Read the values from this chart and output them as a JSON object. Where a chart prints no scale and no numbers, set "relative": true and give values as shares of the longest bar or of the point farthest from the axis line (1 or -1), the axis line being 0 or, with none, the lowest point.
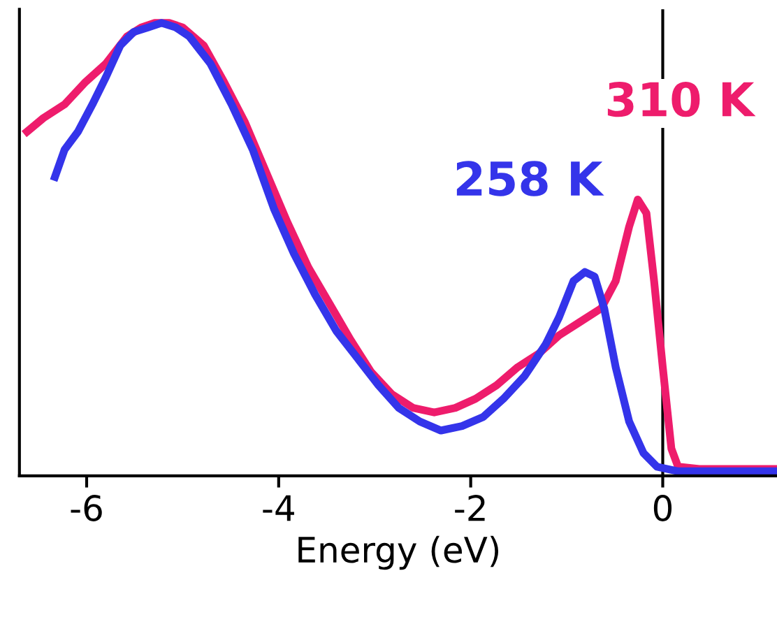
{
  "chart_data": {
    "type": "line",
    "xlabel": "Energy (eV)",
    "relative": true,
    "legend": false,
    "grid": false,
    "xlim": [
      -6.7,
      1.19
    ],
    "xticks": [
      {
        "value": -6,
        "label": "-6"
      },
      {
        "value": -4,
        "label": "-4"
      },
      {
        "value": -2,
        "label": "-2"
      },
      {
        "value": 0,
        "label": "0"
      }
    ],
    "ref_lines": [
      {
        "axis": "x",
        "value": 0,
        "color": "#000000"
      }
    ],
    "series": [
      {
        "name": "310 K",
        "color": "#ee1c6c",
        "x": [
          -6.62,
          -6.45,
          -6.23,
          -6.01,
          -5.8,
          -5.58,
          -5.43,
          -5.29,
          -5.14,
          -5.0,
          -4.78,
          -4.57,
          -4.35,
          -4.13,
          -3.91,
          -3.69,
          -3.47,
          -3.25,
          -3.04,
          -2.82,
          -2.6,
          -2.38,
          -2.16,
          -1.95,
          -1.73,
          -1.51,
          -1.29,
          -1.08,
          -0.86,
          -0.64,
          -0.49,
          -0.35,
          -0.26,
          -0.17,
          -0.09,
          0.0,
          0.09,
          0.16,
          0.38,
          1.19
        ],
        "values": [
          0.76,
          0.79,
          0.82,
          0.87,
          0.91,
          0.97,
          0.99,
          1.0,
          1.0,
          0.99,
          0.95,
          0.87,
          0.78,
          0.67,
          0.56,
          0.46,
          0.38,
          0.3,
          0.23,
          0.18,
          0.15,
          0.14,
          0.15,
          0.17,
          0.2,
          0.24,
          0.27,
          0.31,
          0.34,
          0.37,
          0.43,
          0.55,
          0.61,
          0.58,
          0.43,
          0.24,
          0.06,
          0.02,
          0.015,
          0.015
        ]
      },
      {
        "name": "258 K",
        "color": "#3434ea",
        "x": [
          -6.33,
          -6.23,
          -6.09,
          -5.94,
          -5.8,
          -5.65,
          -5.51,
          -5.36,
          -5.22,
          -5.07,
          -4.93,
          -4.71,
          -4.49,
          -4.27,
          -4.05,
          -3.84,
          -3.62,
          -3.4,
          -3.18,
          -2.96,
          -2.75,
          -2.53,
          -2.31,
          -2.09,
          -1.87,
          -1.66,
          -1.44,
          -1.22,
          -1.08,
          -0.93,
          -0.81,
          -0.71,
          -0.61,
          -0.49,
          -0.35,
          -0.2,
          -0.06,
          0.16,
          1.19
        ],
        "values": [
          0.66,
          0.72,
          0.76,
          0.82,
          0.88,
          0.95,
          0.98,
          0.99,
          1.0,
          0.99,
          0.97,
          0.91,
          0.82,
          0.72,
          0.59,
          0.49,
          0.4,
          0.32,
          0.26,
          0.2,
          0.15,
          0.12,
          0.1,
          0.11,
          0.13,
          0.17,
          0.22,
          0.29,
          0.35,
          0.43,
          0.45,
          0.44,
          0.37,
          0.24,
          0.12,
          0.05,
          0.02,
          0.01,
          0.01
        ]
      }
    ]
  }
}
